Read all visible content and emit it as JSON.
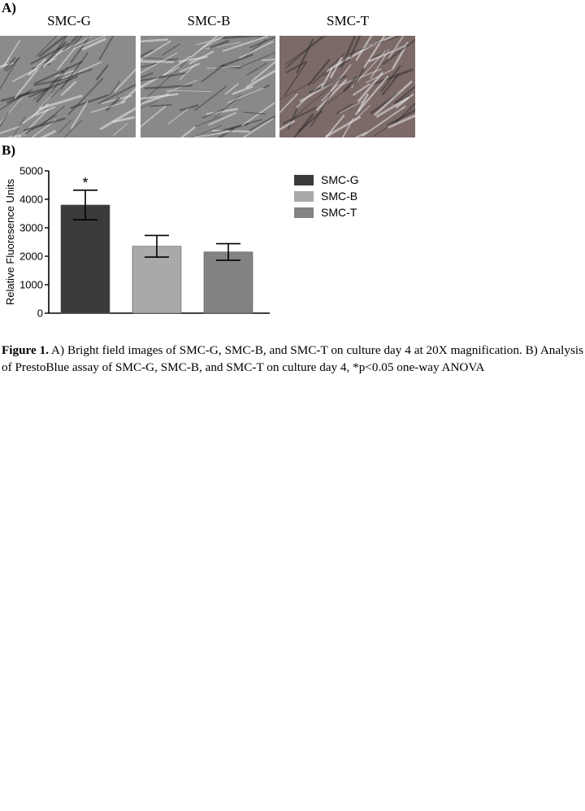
{
  "panel_a": {
    "label": "A)",
    "images": [
      {
        "title": "SMC-G",
        "tone": "#8d8a8a"
      },
      {
        "title": "SMC-B",
        "tone": "#8a8889"
      },
      {
        "title": "SMC-T",
        "tone": "#7b6a67"
      }
    ]
  },
  "panel_b": {
    "label": "B)"
  },
  "chart_data": {
    "type": "bar",
    "categories": [
      "SMC-G",
      "SMC-B",
      "SMC-T"
    ],
    "values": [
      3800,
      2350,
      2150
    ],
    "errors": [
      520,
      380,
      290
    ],
    "colors": [
      "#3a3a3a",
      "#a9a9a9",
      "#838383"
    ],
    "ylabel": "Relative Fluoresence Units",
    "xlabel": "",
    "ylim": [
      0,
      5000
    ],
    "yticks": [
      "0",
      "1000",
      "2000",
      "3000",
      "4000",
      "5000"
    ],
    "annotations": [
      {
        "category": "SMC-G",
        "text": "*"
      }
    ],
    "legend": {
      "position": "right",
      "entries": [
        "SMC-G",
        "SMC-B",
        "SMC-T"
      ]
    }
  },
  "caption": {
    "bold": "Figure 1.",
    "text": " A) Bright field images of SMC-G, SMC-B, and SMC-T on culture day 4 at 20X magnification. B) Analysis of PrestoBlue assay of SMC-G, SMC-B, and SMC-T on culture day 4, *p<0.05 one-way ANOVA"
  }
}
